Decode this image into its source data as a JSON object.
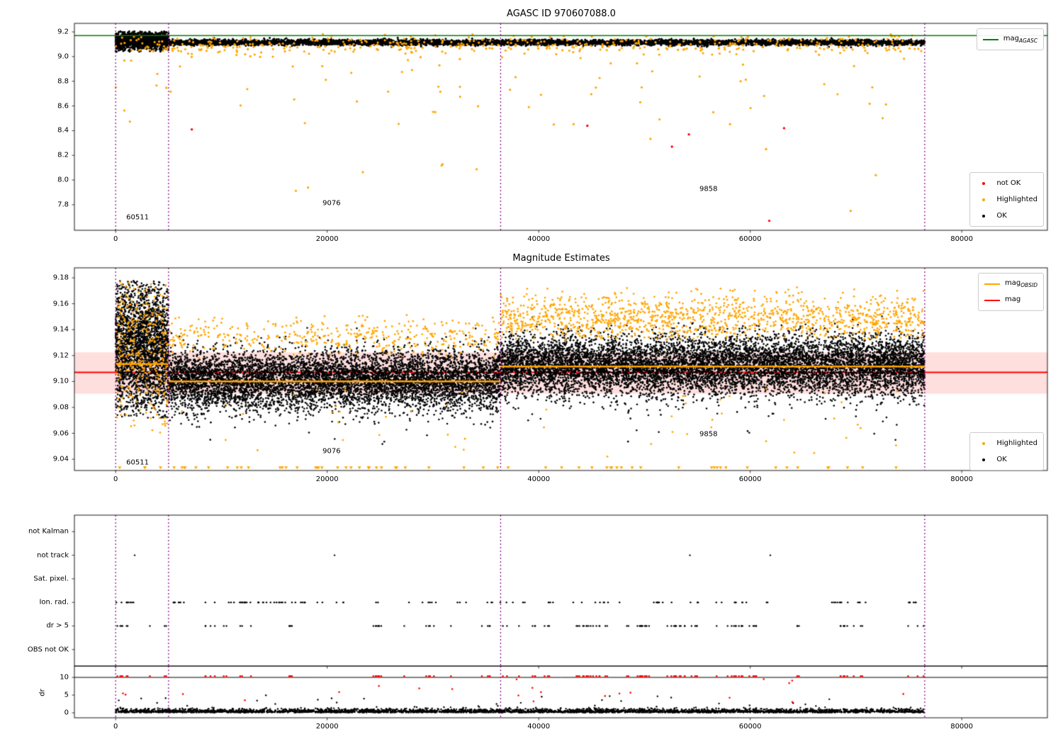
{
  "titles": {
    "top": "AGASC ID 970607088.0",
    "middle": "Magnitude Estimates"
  },
  "axis_labels": {
    "dr": "dr"
  },
  "colors": {
    "ok": "#000000",
    "highlighted": "#ffa500",
    "not_ok": "#ff0000",
    "mag_agasc_line": "#008000",
    "mag_line": "#ff0000",
    "mag_obsid_line": "#ffa500",
    "interval_vline": "#800080",
    "band_fill": "rgba(255,0,0,0.13)"
  },
  "legends": {
    "top_line": {
      "entries": [
        {
          "label_prefix": "mag",
          "label_sub": "AGASC",
          "color": "#008000",
          "marker": "line"
        }
      ]
    },
    "top_scatter": {
      "entries": [
        {
          "label": "not OK",
          "color": "#ff0000",
          "marker": "dot"
        },
        {
          "label": "Highlighted",
          "color": "#ffa500",
          "marker": "dot"
        },
        {
          "label": "OK",
          "color": "#000000",
          "marker": "dot"
        }
      ]
    },
    "mid_line": {
      "entries": [
        {
          "label_prefix": "mag",
          "label_sub": "OBSID",
          "color": "#ffa500",
          "marker": "line"
        },
        {
          "label_prefix": "mag",
          "label_sub": "",
          "color": "#ff0000",
          "marker": "line"
        }
      ]
    },
    "mid_scatter": {
      "entries": [
        {
          "label": "Highlighted",
          "color": "#ffa500",
          "marker": "dot"
        },
        {
          "label": "OK",
          "color": "#000000",
          "marker": "dot"
        }
      ]
    }
  },
  "obsids": [
    "60511",
    "9076",
    "9858"
  ],
  "chart_data": [
    {
      "id": "mag_overview",
      "type": "scatter",
      "title": "AGASC ID 970607088.0",
      "xlim": [
        -3900,
        88100
      ],
      "ylim": [
        7.593,
        9.269
      ],
      "xticks": {
        "values": [
          0,
          20000,
          40000,
          60000,
          80000
        ],
        "labels": [
          "0",
          "20000",
          "40000",
          "60000",
          "80000"
        ]
      },
      "yticks": {
        "values": [
          7.8,
          8.0,
          8.2,
          8.4,
          8.6,
          8.8,
          9.0,
          9.2
        ],
        "labels": [
          "7.8",
          "8.0",
          "8.2",
          "8.4",
          "8.6",
          "8.8",
          "9.0",
          "9.2"
        ]
      },
      "hlines": [
        {
          "y": 9.17,
          "color": "#008000",
          "width": 1.5,
          "layer": "over",
          "name": "mag_agasc"
        }
      ],
      "vlines": {
        "xs": [
          0,
          5000,
          36400,
          76500
        ],
        "color": "#800080",
        "style": "dotted"
      },
      "clusters": [
        {
          "name": "ok-dense-block",
          "color": "#000000",
          "size": 1.5,
          "n": 1500,
          "seed": 11,
          "x": [
            0,
            5000
          ],
          "y": {
            "dist": "normal",
            "mean": 9.13,
            "sd": 0.035,
            "clip": [
              9.04,
              9.205
            ]
          }
        },
        {
          "name": "ok-band",
          "color": "#000000",
          "size": 1.5,
          "n": 5200,
          "seed": 12,
          "x": [
            5000,
            76500
          ],
          "y": {
            "dist": "normal",
            "mean": 9.115,
            "sd": 0.011,
            "clip": [
              9.07,
              9.155
            ]
          }
        },
        {
          "name": "highlighted-band",
          "color": "#ffa500",
          "size": 1.6,
          "n": 450,
          "seed": 13,
          "x": [
            0,
            76500
          ],
          "y": {
            "dist": "normal",
            "mean": 9.09,
            "sd": 0.04,
            "clip": [
              8.88,
              9.185
            ]
          }
        },
        {
          "name": "highlighted-outliers",
          "color": "#ffa500",
          "size": 1.6,
          "n": 65,
          "seed": 14,
          "x": [
            0,
            76500
          ],
          "y": {
            "dist": "uniform",
            "range": [
              8.45,
              9.0
            ]
          }
        },
        {
          "name": "highlighted-deep-outliers",
          "color": "#ffa500",
          "size": 1.6,
          "n": 8,
          "seed": 15,
          "x": [
            0,
            76500
          ],
          "y": {
            "dist": "uniform",
            "range": [
              7.9,
              8.5
            ]
          }
        }
      ],
      "points": [
        {
          "name": "not-ok",
          "color": "#ff0000",
          "size": 1.7,
          "pts": [
            [
              7200,
              8.41
            ],
            [
              44600,
              8.44
            ],
            [
              52600,
              8.27
            ],
            [
              54200,
              8.37
            ],
            [
              63200,
              8.42
            ],
            [
              61800,
              7.67
            ]
          ]
        },
        {
          "name": "highlighted-low",
          "color": "#ffa500",
          "size": 1.7,
          "pts": [
            [
              69500,
              7.75
            ],
            [
              61500,
              8.25
            ]
          ]
        }
      ],
      "annotations": [
        {
          "text": "60511",
          "x": 1000,
          "y": 7.697
        },
        {
          "text": "9076",
          "x": 19560,
          "y": 7.812
        },
        {
          "text": "9858",
          "x": 55200,
          "y": 7.926
        }
      ]
    },
    {
      "id": "mag_estimates",
      "type": "scatter",
      "title": "Magnitude Estimates",
      "xlim": [
        -3900,
        88100
      ],
      "ylim": [
        9.0313,
        9.1877
      ],
      "xticks": {
        "values": [
          0,
          20000,
          40000,
          60000,
          80000
        ],
        "labels": [
          "0",
          "20000",
          "40000",
          "60000",
          "80000"
        ]
      },
      "yticks": {
        "values": [
          9.04,
          9.06,
          9.08,
          9.1,
          9.12,
          9.14,
          9.16,
          9.18
        ],
        "labels": [
          "9.04",
          "9.06",
          "9.08",
          "9.10",
          "9.12",
          "9.14",
          "9.16",
          "9.18"
        ]
      },
      "bands": [
        {
          "y0": 9.0905,
          "y1": 9.1225,
          "color": "rgba(255,0,0,0.13)",
          "name": "mag-uncertainty-band"
        }
      ],
      "hlines": [
        {
          "y": 9.107,
          "color": "#ff0000",
          "width": 2,
          "layer": "under",
          "name": "mag"
        }
      ],
      "steps": [
        {
          "color": "#ffa500",
          "width": 2.5,
          "name": "mag_obsid",
          "segments": [
            [
              0,
              5000,
              9.1135
            ],
            [
              5000,
              36400,
              9.1
            ],
            [
              36400,
              76500,
              9.1115
            ]
          ]
        }
      ],
      "vlines": {
        "xs": [
          0,
          5000,
          36400,
          76500
        ],
        "color": "#800080",
        "style": "dotted"
      },
      "clusters": [
        {
          "name": "ok-seg-60511",
          "color": "#000000",
          "size": 1.3,
          "n": 2600,
          "seed": 21,
          "x": [
            0,
            5000
          ],
          "y": {
            "dist": "normal",
            "mean": 9.127,
            "sd": 0.027,
            "clip": [
              9.072,
              9.178
            ]
          }
        },
        {
          "name": "ok-seg-9076",
          "color": "#000000",
          "size": 1.3,
          "n": 7000,
          "seed": 22,
          "x": [
            5000,
            36400
          ],
          "y": {
            "dist": "normal",
            "mean": 9.101,
            "sd": 0.0115,
            "clip": [
              9.058,
              9.149
            ]
          }
        },
        {
          "name": "ok-seg-9858",
          "color": "#000000",
          "size": 1.3,
          "n": 9000,
          "seed": 23,
          "x": [
            36400,
            76500
          ],
          "y": {
            "dist": "normal",
            "mean": 9.112,
            "sd": 0.0115,
            "clip": [
              9.066,
              9.152
            ]
          }
        },
        {
          "name": "ok-low-sparse",
          "color": "#000000",
          "size": 1.3,
          "n": 25,
          "seed": 24,
          "x": [
            0,
            76500
          ],
          "y": {
            "dist": "uniform",
            "range": [
              9.05,
              9.076
            ]
          }
        },
        {
          "name": "highlighted-seg-60511",
          "color": "#ffa500",
          "size": 1.4,
          "n": 320,
          "seed": 25,
          "x": [
            0,
            5000
          ],
          "y": {
            "dist": "normal",
            "mean": 9.126,
            "sd": 0.03,
            "clip": [
              9.065,
              9.178
            ]
          }
        },
        {
          "name": "highlighted-seg-9076",
          "color": "#ffa500",
          "size": 1.4,
          "n": 420,
          "seed": 26,
          "x": [
            5000,
            36400
          ],
          "y": {
            "dist": "normal",
            "mean": 9.134,
            "sd": 0.008,
            "clip": [
              9.118,
              9.152
            ]
          }
        },
        {
          "name": "highlighted-seg-9858",
          "color": "#ffa500",
          "size": 1.4,
          "n": 1300,
          "seed": 27,
          "x": [
            36400,
            76500
          ],
          "y": {
            "dist": "normal",
            "mean": 9.149,
            "sd": 0.009,
            "clip": [
              9.132,
              9.174
            ]
          }
        },
        {
          "name": "highlighted-low",
          "color": "#ffa500",
          "size": 1.4,
          "n": 55,
          "seed": 28,
          "x": [
            0,
            76500
          ],
          "y": {
            "dist": "uniform",
            "range": [
              9.042,
              9.095
            ]
          }
        },
        {
          "name": "highlighted-clipped-markers",
          "color": "#ffa500",
          "size": 2.5,
          "marker": "tri",
          "n": 65,
          "seed": 29,
          "x": [
            0,
            76500
          ],
          "y": {
            "dist": "fixed",
            "value": 9.0335
          }
        }
      ],
      "annotations": [
        {
          "text": "60511",
          "x": 1000,
          "y": 9.0375
        },
        {
          "text": "9076",
          "x": 19560,
          "y": 9.046
        },
        {
          "text": "9858",
          "x": 55200,
          "y": 9.059
        }
      ]
    },
    {
      "id": "flags",
      "type": "cat",
      "categories": [
        "not Kalman",
        "not track",
        "Sat. pixel.",
        "Ion. rad.",
        "dr > 5",
        "OBS not OK"
      ],
      "xlim": [
        -3900,
        88100
      ],
      "xticks": {
        "values": [
          0,
          20000,
          40000,
          60000,
          80000
        ],
        "labels": null
      },
      "vlines": {
        "xs": [
          0,
          5000,
          36400,
          76500
        ],
        "color": "#800080",
        "style": "dotted"
      },
      "rows": [
        {
          "category": "not track",
          "color": "#000000",
          "size": 1.2,
          "xs": [
            1800,
            20700,
            54300,
            61900
          ]
        },
        {
          "category": "Ion. rad.",
          "color": "#000000",
          "size": 1.2,
          "n": 130,
          "seed": 31,
          "x": [
            0,
            76500
          ],
          "grouped": true
        },
        {
          "category": "dr > 5",
          "color": "#000000",
          "size": 1.2,
          "n": 120,
          "seed": 32,
          "x": [
            0,
            76500
          ],
          "grouped": true
        }
      ]
    },
    {
      "id": "dr",
      "type": "scatter",
      "ylabel": "dr",
      "xlim": [
        -3900,
        88100
      ],
      "ylim": [
        -1.4,
        13.2
      ],
      "xticks": {
        "values": [
          0,
          20000,
          40000,
          60000,
          80000
        ],
        "labels": [
          "0",
          "20000",
          "40000",
          "60000",
          "80000"
        ]
      },
      "yticks": {
        "values": [
          0,
          5,
          10
        ],
        "labels": [
          "0",
          "5",
          "10"
        ]
      },
      "hlines": [
        {
          "y": 10,
          "color": "#000000",
          "width": 1,
          "layer": "under",
          "name": "dr-clip-limit"
        }
      ],
      "vlines": {
        "xs": [
          0,
          5000,
          36400,
          76500
        ],
        "color": "#800080",
        "style": "dotted"
      },
      "clusters": [
        {
          "name": "dr-ok-near-zero",
          "color": "#000000",
          "size": 1.2,
          "n": 3500,
          "seed": 41,
          "x": [
            0,
            76500
          ],
          "y": {
            "dist": "halfnormal",
            "base": 0.08,
            "sd": 0.5,
            "clip": [
              0,
              2.4
            ]
          }
        },
        {
          "name": "dr-ok-mid",
          "color": "#000000",
          "size": 1.2,
          "n": 28,
          "seed": 42,
          "x": [
            0,
            76500
          ],
          "y": {
            "dist": "uniform",
            "range": [
              1.8,
              5.2
            ]
          }
        },
        {
          "name": "dr-clipped-high",
          "color": "#ff0000",
          "size": 1.3,
          "n": 120,
          "seed": 32,
          "x": [
            0,
            76500
          ],
          "grouped": true,
          "y": {
            "dist": "fixed",
            "value": 10.35
          }
        },
        {
          "name": "dr-high-scattered",
          "color": "#ff0000",
          "size": 1.3,
          "n": 22,
          "seed": 44,
          "x": [
            0,
            76500
          ],
          "y": {
            "dist": "uniform",
            "range": [
              3,
              9.5
            ]
          }
        }
      ]
    }
  ]
}
